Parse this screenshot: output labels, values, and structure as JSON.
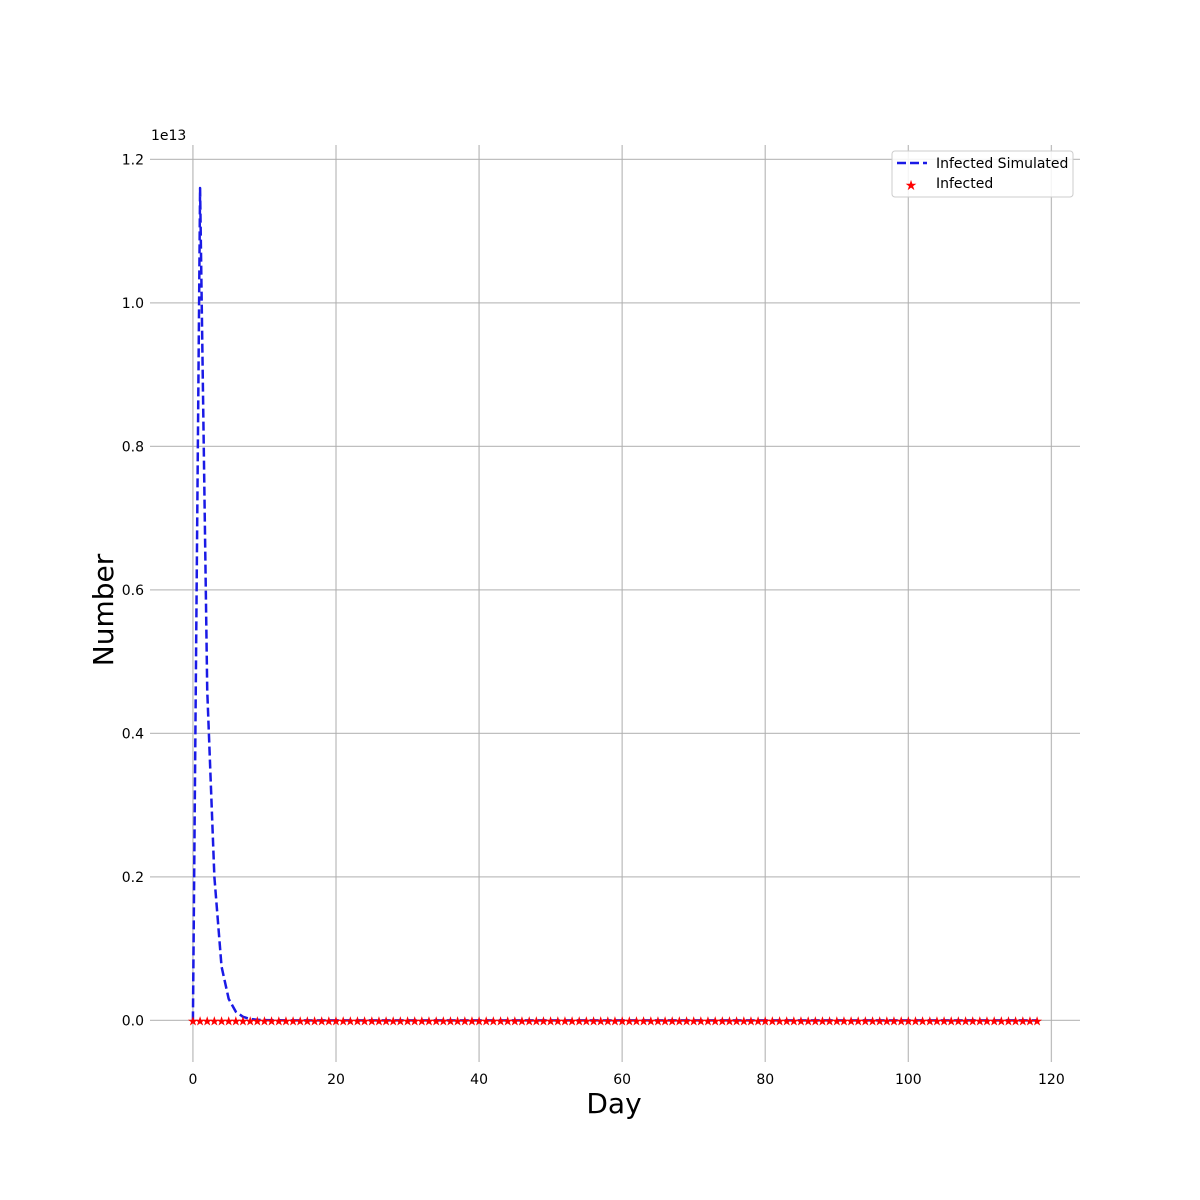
{
  "chart_data": {
    "type": "line",
    "xlabel": "Day",
    "ylabel": "Number",
    "y_offset_label": "1e13",
    "xlim": [
      -6,
      124
    ],
    "ylim": [
      -0.058,
      1.22
    ],
    "y_unit_multiplier": 10000000000000.0,
    "xticks": [
      0,
      20,
      40,
      60,
      80,
      100,
      120
    ],
    "yticks": [
      0.0,
      0.2,
      0.4,
      0.6,
      0.8,
      1.0,
      1.2
    ],
    "ytick_labels": [
      "0.0",
      "0.2",
      "0.4",
      "0.6",
      "0.8",
      "1.0",
      "1.2"
    ],
    "grid": true,
    "legend_position": "top-right",
    "series": [
      {
        "name": "Infected Simulated",
        "style": "dashed-line",
        "color": "#1a1ae6",
        "x": [
          0,
          1,
          2,
          3,
          4,
          5,
          6,
          7,
          8,
          9,
          10,
          12,
          15,
          20,
          30,
          40,
          60,
          80,
          100,
          118
        ],
        "y": [
          0.0,
          1.16,
          0.46,
          0.2,
          0.075,
          0.03,
          0.012,
          0.005,
          0.002,
          0.0008,
          0.0003,
          0.0001,
          0.0,
          0.0,
          0.0,
          0.0,
          0.0,
          0.0,
          0.0,
          0.0
        ]
      },
      {
        "name": "Infected",
        "style": "star-markers",
        "color": "#ff0000",
        "x_start": 0,
        "x_end": 118,
        "x_step": 1,
        "y_constant": 0.0
      }
    ]
  }
}
